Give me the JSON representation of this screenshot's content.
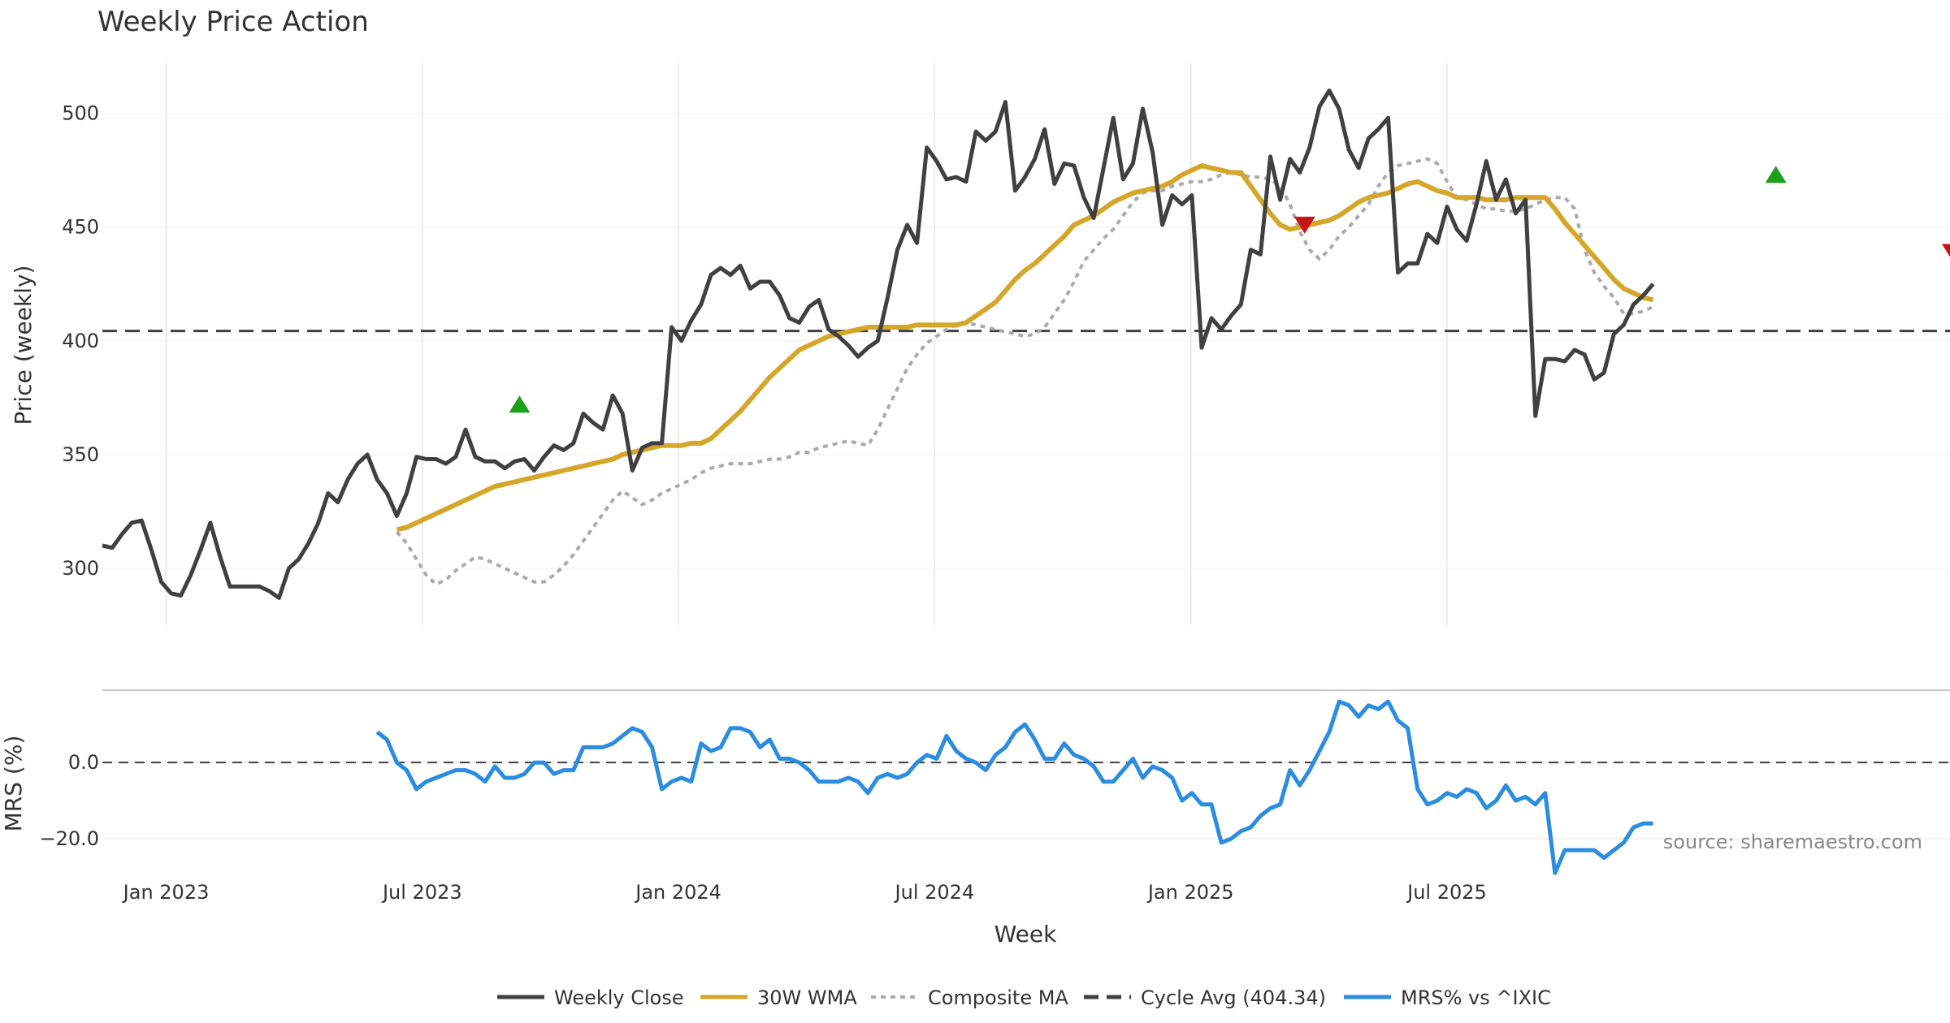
{
  "chart_data": {
    "type": "line",
    "title": "Weekly Price Action",
    "xlabel": "Week",
    "source_note": "source: sharemaestro.com",
    "x_ticks": [
      "Jan 2023",
      "Jul 2023",
      "Jan 2024",
      "Jul 2024",
      "Jan 2025",
      "Jul 2025"
    ],
    "price_panel": {
      "ylabel": "Price (weekly)",
      "ylim": [
        275,
        522
      ],
      "y_ticks": [
        "300",
        "350",
        "400",
        "450",
        "500"
      ],
      "cycle_avg": 404.34,
      "weekly_close": [
        310,
        309,
        315,
        320,
        321,
        308,
        294,
        289,
        288,
        297,
        308,
        320,
        305,
        292,
        292,
        292,
        292,
        290,
        287,
        300,
        304,
        311,
        320,
        333,
        329,
        339,
        346,
        350,
        339,
        333,
        323,
        333,
        349,
        348,
        348,
        346,
        349,
        361,
        349,
        347,
        347,
        344,
        347,
        348,
        343,
        349,
        354,
        352,
        355,
        368,
        364,
        361,
        376,
        368,
        343,
        353,
        355,
        355,
        406,
        400,
        409,
        416,
        429,
        432,
        429,
        433,
        423,
        426,
        426,
        420,
        410,
        408,
        415,
        418,
        405,
        402,
        398,
        393,
        397,
        400,
        419,
        440,
        451,
        443,
        485,
        479,
        471,
        472,
        470,
        492,
        488,
        492,
        505,
        466,
        472,
        480,
        493,
        469,
        478,
        477,
        463,
        454,
        476,
        498,
        471,
        478,
        502,
        483,
        451,
        464,
        460,
        464,
        397,
        410,
        405,
        411,
        416,
        440,
        438,
        481,
        462,
        480,
        474,
        485,
        503,
        510,
        502,
        484,
        476,
        489,
        493,
        498,
        430,
        434,
        434,
        447,
        443,
        459,
        449,
        444,
        460,
        479,
        462,
        471,
        456,
        462,
        367,
        392,
        392,
        391,
        396,
        394,
        383,
        386,
        403,
        407,
        416,
        420,
        425
      ],
      "wma_30w": [
        317,
        318,
        320,
        322,
        324,
        326,
        328,
        330,
        332,
        334,
        336,
        337,
        338,
        339,
        340,
        341,
        342,
        343,
        344,
        345,
        346,
        347,
        348,
        350,
        351,
        352,
        353,
        354,
        354,
        354,
        355,
        355,
        357,
        361,
        365,
        369,
        374,
        379,
        384,
        388,
        392,
        396,
        398,
        400,
        402,
        403,
        404,
        405,
        406,
        406,
        406,
        406,
        406,
        407,
        407,
        407,
        407,
        407,
        408,
        411,
        414,
        417,
        422,
        427,
        431,
        434,
        438,
        442,
        446,
        451,
        453,
        455,
        458,
        461,
        463,
        465,
        466,
        467,
        468,
        470,
        473,
        475,
        477,
        476,
        475,
        474,
        474,
        468,
        462,
        456,
        451,
        449,
        450,
        451,
        452,
        453,
        455,
        458,
        461,
        463,
        464,
        465,
        467,
        469,
        470,
        468,
        466,
        465,
        463,
        463,
        463,
        462,
        462,
        462,
        463,
        463,
        463,
        463,
        458,
        452,
        447,
        442,
        437,
        432,
        427,
        423,
        421,
        419,
        418
      ],
      "composite_ma": [
        316,
        311,
        304,
        297,
        293,
        295,
        299,
        302,
        305,
        304,
        302,
        300,
        298,
        296,
        294,
        294,
        297,
        301,
        306,
        312,
        318,
        324,
        330,
        334,
        331,
        328,
        330,
        333,
        335,
        337,
        339,
        342,
        344,
        345,
        346,
        346,
        346,
        347,
        348,
        348,
        349,
        351,
        351,
        353,
        354,
        355,
        356,
        355,
        354,
        361,
        370,
        379,
        388,
        394,
        399,
        402,
        405,
        407,
        408,
        407,
        406,
        405,
        404,
        403,
        402,
        403,
        406,
        412,
        418,
        426,
        435,
        440,
        445,
        449,
        455,
        461,
        465,
        466,
        466,
        468,
        469,
        470,
        470,
        471,
        473,
        474,
        473,
        472,
        472,
        471,
        468,
        460,
        448,
        440,
        436,
        440,
        446,
        450,
        455,
        460,
        468,
        474,
        477,
        478,
        479,
        480,
        478,
        470,
        463,
        462,
        460,
        458,
        458,
        457,
        457,
        458,
        460,
        462,
        463,
        463,
        458,
        440,
        430,
        424,
        419,
        412,
        412,
        413,
        415
      ],
      "buy_signals": [
        {
          "x": 42.5,
          "y": 372
        },
        {
          "x": 170.5,
          "y": 473
        }
      ],
      "sell_signals": [
        {
          "x": 122.5,
          "y": 451
        },
        {
          "x": 188.5,
          "y": 439
        }
      ]
    },
    "mrs_panel": {
      "ylabel": "MRS (%)",
      "ylim": [
        -30,
        19
      ],
      "y_ticks": [
        "0.0",
        "−20.0"
      ],
      "mrs_values": [
        8,
        6,
        0,
        -2,
        -7,
        -5,
        -4,
        -3,
        -2,
        -2,
        -3,
        -5,
        -1,
        -4,
        -4,
        -3,
        0,
        0,
        -3,
        -2,
        -2,
        4,
        4,
        4,
        5,
        7,
        9,
        8,
        4,
        -7,
        -5,
        -4,
        -5,
        5,
        3,
        4,
        9,
        9,
        8,
        4,
        6,
        1,
        1,
        0,
        -2,
        -5,
        -5,
        -5,
        -4,
        -5,
        -8,
        -4,
        -3,
        -4,
        -3,
        0,
        2,
        1,
        7,
        3,
        1,
        0,
        -2,
        2,
        4,
        8,
        10,
        6,
        1,
        1,
        5,
        2,
        1,
        -1,
        -5,
        -5,
        -2,
        1,
        -4,
        -1,
        -2,
        -4,
        -10,
        -8,
        -11,
        -11,
        -21,
        -20,
        -18,
        -17,
        -14,
        -12,
        -11,
        -2,
        -6,
        -2,
        3,
        8,
        16,
        15,
        12,
        15,
        14,
        16,
        11,
        9,
        -7,
        -11,
        -10,
        -8,
        -9,
        -7,
        -8,
        -12,
        -10,
        -6,
        -10,
        -9,
        -11,
        -8,
        -29,
        -23,
        -23,
        -23,
        -23,
        -25,
        -23,
        -21,
        -17,
        -16,
        -16
      ]
    },
    "legend": [
      {
        "name": "Weekly Close",
        "color": "#404040",
        "style": "solid"
      },
      {
        "name": "30W WMA",
        "color": "#d4a62a",
        "style": "solid"
      },
      {
        "name": "Composite MA",
        "color": "#aaaaaa",
        "style": "dotted"
      },
      {
        "name": "Cycle Avg (404.34)",
        "color": "#404040",
        "style": "dashed"
      },
      {
        "name": "MRS% vs ^IXIC",
        "color": "#2b8ce0",
        "style": "solid"
      }
    ],
    "colors": {
      "close": "#404040",
      "wma": "#d4a62a",
      "composite": "#aaaaaa",
      "mrs": "#2b8ce0",
      "buy": "#1aa01a",
      "sell": "#c81414",
      "grid": "#e6e6e6"
    }
  }
}
